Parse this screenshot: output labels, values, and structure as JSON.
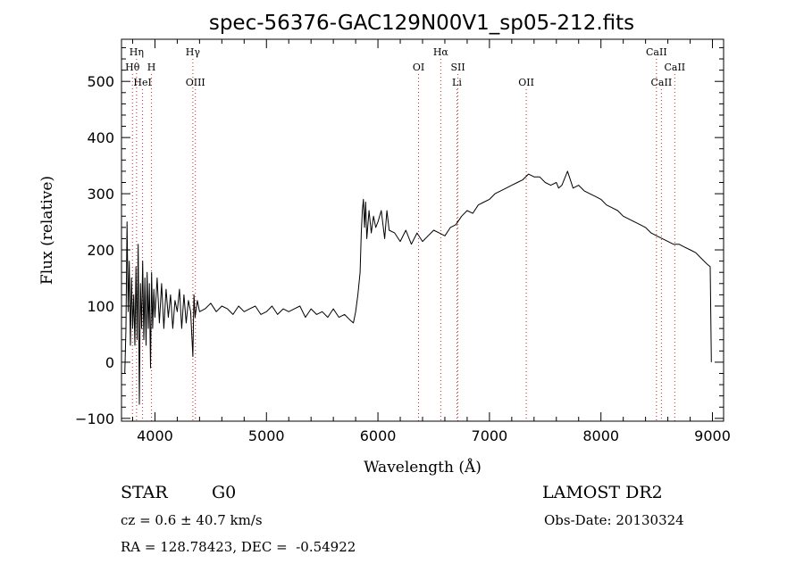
{
  "chart_data": {
    "type": "line",
    "title": "spec-56376-GAC129N00V1_sp05-212.fits",
    "xlabel": "Wavelength (Å)",
    "ylabel": "Flux (relative)",
    "xlim": [
      3700,
      9100
    ],
    "ylim": [
      -105,
      575
    ],
    "xticks": [
      4000,
      5000,
      6000,
      7000,
      8000,
      9000
    ],
    "yticks": [
      -100,
      0,
      100,
      200,
      300,
      400,
      500
    ],
    "grid": false,
    "line_color": "#000000",
    "marker_color": "#cc2222",
    "series": [
      {
        "x": [
          3730,
          3740,
          3750,
          3760,
          3770,
          3780,
          3790,
          3800,
          3810,
          3820,
          3830,
          3840,
          3850,
          3860,
          3870,
          3880,
          3890,
          3900,
          3910,
          3920,
          3930,
          3940,
          3950,
          3960,
          3970,
          3980,
          3990,
          4000,
          4020,
          4040,
          4060,
          4080,
          4100,
          4120,
          4140,
          4160,
          4180,
          4200,
          4220,
          4240,
          4260,
          4280,
          4300,
          4320,
          4340,
          4350,
          4360,
          4380,
          4400,
          4450,
          4500,
          4550,
          4600,
          4650,
          4700,
          4750,
          4800,
          4850,
          4900,
          4950,
          5000,
          5050,
          5100,
          5150,
          5200,
          5250,
          5300,
          5350,
          5400,
          5450,
          5500,
          5550,
          5600,
          5650,
          5700,
          5750,
          5780,
          5800,
          5820,
          5840,
          5850,
          5860,
          5870,
          5880,
          5890,
          5900,
          5920,
          5940,
          5960,
          5980,
          6000,
          6030,
          6060,
          6080,
          6100,
          6150,
          6200,
          6250,
          6300,
          6350,
          6400,
          6450,
          6500,
          6550,
          6600,
          6650,
          6700,
          6750,
          6800,
          6850,
          6900,
          6950,
          7000,
          7050,
          7100,
          7150,
          7200,
          7250,
          7300,
          7350,
          7400,
          7450,
          7500,
          7550,
          7600,
          7620,
          7650,
          7700,
          7750,
          7800,
          7850,
          7900,
          7950,
          8000,
          8050,
          8100,
          8150,
          8200,
          8250,
          8300,
          8350,
          8400,
          8450,
          8500,
          8550,
          8600,
          8650,
          8700,
          8750,
          8800,
          8850,
          8900,
          8950,
          8980,
          8990
        ],
        "y": [
          -20,
          60,
          250,
          90,
          180,
          30,
          150,
          60,
          120,
          30,
          170,
          40,
          210,
          -75,
          140,
          60,
          180,
          40,
          150,
          30,
          160,
          60,
          140,
          -10,
          160,
          60,
          130,
          80,
          150,
          70,
          140,
          60,
          130,
          80,
          120,
          60,
          110,
          90,
          130,
          60,
          120,
          70,
          110,
          90,
          10,
          120,
          80,
          110,
          90,
          95,
          105,
          90,
          100,
          95,
          85,
          100,
          90,
          95,
          100,
          85,
          90,
          100,
          85,
          95,
          90,
          95,
          100,
          80,
          95,
          85,
          90,
          80,
          95,
          80,
          85,
          75,
          70,
          90,
          120,
          160,
          230,
          270,
          290,
          240,
          285,
          220,
          270,
          230,
          260,
          240,
          250,
          270,
          220,
          270,
          235,
          230,
          215,
          235,
          210,
          230,
          215,
          225,
          235,
          230,
          225,
          240,
          245,
          260,
          270,
          265,
          280,
          285,
          290,
          300,
          305,
          310,
          315,
          320,
          325,
          335,
          330,
          330,
          320,
          315,
          320,
          310,
          315,
          340,
          310,
          315,
          305,
          300,
          295,
          290,
          280,
          275,
          270,
          260,
          255,
          250,
          245,
          240,
          230,
          225,
          220,
          215,
          210,
          210,
          205,
          200,
          195,
          185,
          175,
          170,
          0
        ]
      }
    ],
    "spectral_lines": [
      {
        "label": "Hη",
        "x": 3835,
        "row": 1
      },
      {
        "label": "Hθ",
        "x": 3798,
        "row": 2
      },
      {
        "label": "H",
        "x": 3969,
        "row": 2
      },
      {
        "label": "HeI",
        "x": 3889,
        "row": 3
      },
      {
        "label": "Hγ",
        "x": 4340,
        "row": 1
      },
      {
        "label": "OIII",
        "x": 4363,
        "row": 3
      },
      {
        "label": "Hα",
        "x": 6563,
        "row": 1
      },
      {
        "label": "OI",
        "x": 6364,
        "row": 2
      },
      {
        "label": "SII",
        "x": 6717,
        "row": 2
      },
      {
        "label": "Li",
        "x": 6708,
        "row": 3
      },
      {
        "label": "OII",
        "x": 7330,
        "row": 3
      },
      {
        "label": "CaII",
        "x": 8498,
        "row": 1
      },
      {
        "label": "CaII",
        "x": 8662,
        "row": 2
      },
      {
        "label": "CaII",
        "x": 8542,
        "row": 3
      }
    ]
  },
  "info": {
    "object_type": "STAR",
    "subclass": "G0",
    "survey": "LAMOST DR2",
    "redshift": "cz = 0.6 ± 40.7 km/s",
    "obs_date": "Obs-Date: 20130324",
    "coords": "RA = 128.78423, DEC =  -0.54922"
  }
}
